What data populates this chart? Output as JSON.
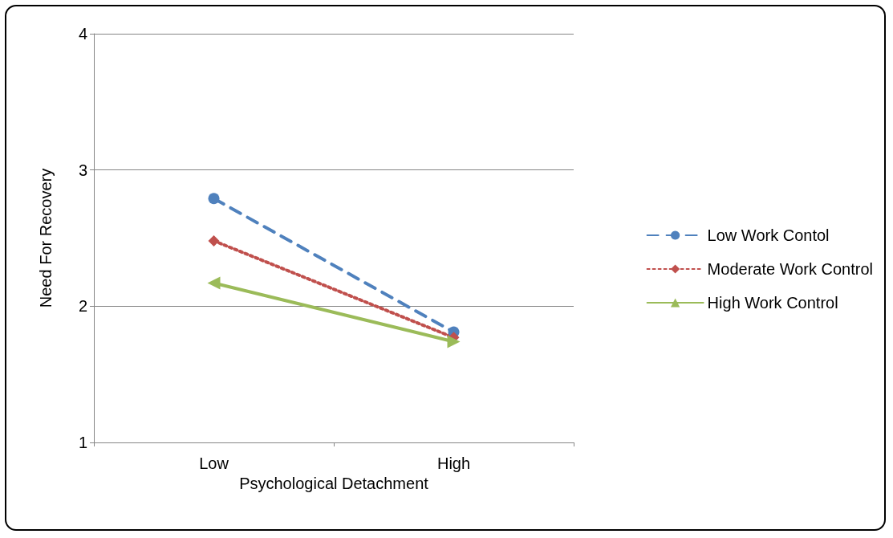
{
  "chart_data": {
    "type": "line",
    "xlabel": "Psychological Detachment",
    "ylabel": "Need For Recovery",
    "categories": [
      "Low",
      "High"
    ],
    "series": [
      {
        "name": "Low Work Contol",
        "color": "#4f81bd",
        "values": [
          2.79,
          1.81
        ],
        "marker": "circle",
        "line_style": "dashed"
      },
      {
        "name": "Moderate Work Control",
        "color": "#c0504d",
        "values": [
          2.48,
          1.77
        ],
        "marker": "diamond",
        "line_style": "dotted"
      },
      {
        "name": "High Work Control",
        "color": "#9bbb59",
        "values": [
          2.17,
          1.74
        ],
        "marker": "triangle",
        "line_style": "solid"
      }
    ],
    "ylim": [
      1,
      4
    ],
    "yticks": [
      1,
      2,
      3,
      4
    ],
    "grid": "y",
    "legend": "right"
  }
}
